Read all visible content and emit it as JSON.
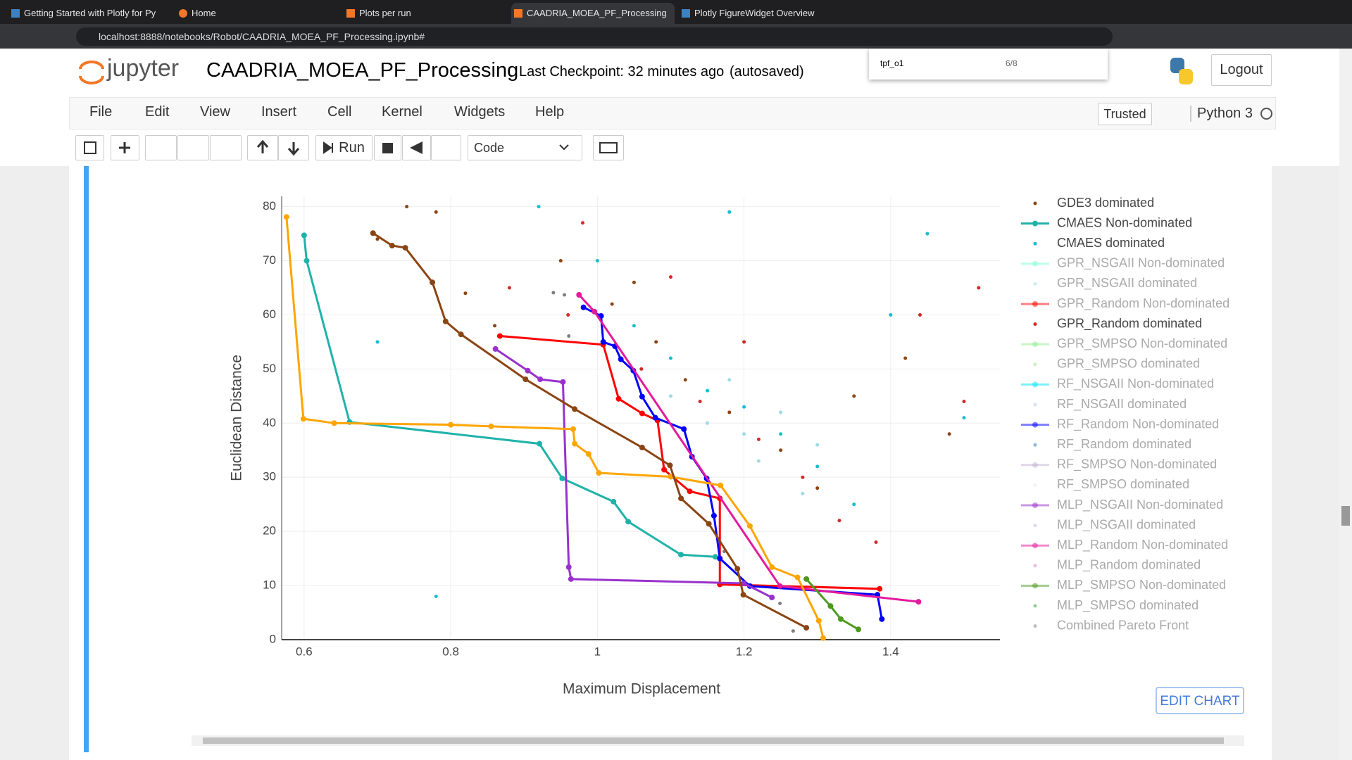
{
  "browser": {
    "tabs": [
      "Getting Started with Plotly for Py",
      "Home",
      "Plots per run",
      "CAADRIA_MOEA_PF_Processing",
      "Plotly FigureWidget Overview"
    ],
    "url": "localhost:8888/notebooks/Robot/CAADRIA_MOEA_PF_Processing.ipynb#",
    "find_query": "tpf_o1",
    "find_count": "6/8"
  },
  "notebook": {
    "logo_text": "jupyter",
    "title": "CAADRIA_MOEA_PF_Processing",
    "checkpoint": "Last Checkpoint: 32 minutes ago",
    "autosaved": "(autosaved)",
    "logout": "Logout",
    "menu": [
      "File",
      "Edit",
      "View",
      "Insert",
      "Cell",
      "Kernel",
      "Widgets",
      "Help"
    ],
    "trusted": "Trusted",
    "kernel": "Python 3",
    "run": "Run",
    "cell_type": "Code",
    "edit_chart": "EDIT CHART"
  },
  "chart_data": {
    "type": "scatter",
    "x_label": "Maximum Displacement",
    "y_label": "Euclidean Distance",
    "xlim": [
      0.5694,
      1.549
    ],
    "ylim": [
      0,
      81.9
    ],
    "xticks": [
      0.6,
      0.8,
      1,
      1.2,
      1.4
    ],
    "yticks": [
      0,
      10,
      20,
      30,
      40,
      50,
      60,
      70,
      80
    ],
    "grid": true,
    "legend": "right",
    "series": [
      {
        "name": "GDE3 dominated",
        "color": "#8b4513",
        "mode": "markers",
        "legend_faded": false,
        "x": [
          0.74,
          0.78,
          0.82,
          0.86,
          0.95,
          1.02,
          1.08,
          1.12,
          1.18,
          1.25,
          1.3,
          1.35,
          1.42,
          1.48,
          1.05,
          0.7
        ],
        "y": [
          80,
          79,
          64,
          58,
          70,
          62,
          55,
          48,
          42,
          35,
          28,
          45,
          52,
          38,
          66,
          74
        ]
      },
      {
        "name": "CMAES Non-dominated",
        "color": "#20b2aa",
        "mode": "lines+markers",
        "legend_faded": false,
        "x": [
          0.6,
          0.6035,
          0.662,
          0.921,
          0.952,
          1.022,
          1.042,
          1.114,
          1.161
        ],
        "y": [
          74.7,
          70,
          40.2,
          36.2,
          29.8,
          25.5,
          21.8,
          15.7,
          15.3
        ]
      },
      {
        "name": "CMAES dominated",
        "color": "#17becf",
        "mode": "markers",
        "legend_faded": false,
        "x": [
          0.92,
          1.0,
          1.05,
          1.1,
          1.15,
          1.2,
          1.25,
          1.3,
          1.35,
          1.4,
          1.45,
          0.7,
          0.78,
          1.5,
          1.18
        ],
        "y": [
          80,
          70,
          58,
          52,
          46,
          43,
          38,
          32,
          25,
          60,
          75,
          55,
          8,
          41,
          79
        ]
      },
      {
        "name": "GPR_NSGAII Non-dominated",
        "color": "#7fffd4",
        "mode": "lines+markers",
        "legend_faded": true,
        "x": [],
        "y": []
      },
      {
        "name": "GPR_NSGAII dominated",
        "color": "#9edae5",
        "mode": "markers",
        "legend_faded": true,
        "x": [
          1.1,
          1.15,
          1.2,
          1.25,
          1.3,
          1.18,
          1.22,
          1.28
        ],
        "y": [
          45,
          40,
          38,
          42,
          36,
          48,
          33,
          27
        ]
      },
      {
        "name": "GPR_Random Non-dominated",
        "color": "#ff0000",
        "mode": "lines+markers",
        "legend_faded": true,
        "x": [
          0.867,
          1.008,
          1.029,
          1.061,
          1.082,
          1.091,
          1.126,
          1.167,
          1.167,
          1.385
        ],
        "y": [
          56.1,
          54.5,
          44.5,
          41.8,
          40.5,
          31.4,
          27.4,
          26.1,
          10.2,
          9.4
        ]
      },
      {
        "name": "GPR_Random dominated",
        "color": "#d62728",
        "mode": "markers",
        "legend_faded": false,
        "x": [
          0.88,
          0.96,
          1.06,
          1.14,
          1.22,
          1.28,
          1.33,
          1.38,
          1.44,
          1.5,
          1.52,
          1.2,
          1.1,
          0.98
        ],
        "y": [
          65,
          60,
          50,
          44,
          37,
          30,
          22,
          18,
          60,
          44,
          65,
          55,
          67,
          77
        ]
      },
      {
        "name": "GPR_SMPSO Non-dominated",
        "color": "#90ee90",
        "mode": "lines+markers",
        "legend_faded": true,
        "x": [],
        "y": []
      },
      {
        "name": "GPR_SMPSO dominated",
        "color": "#98df8a",
        "mode": "markers",
        "legend_faded": true,
        "x": [],
        "y": []
      },
      {
        "name": "RF_NSGAII Non-dominated",
        "color": "#00e5ee",
        "mode": "lines+markers",
        "legend_faded": true,
        "x": [],
        "y": []
      },
      {
        "name": "RF_NSGAII dominated",
        "color": "#aec7e8",
        "mode": "markers",
        "legend_faded": true,
        "x": [],
        "y": []
      },
      {
        "name": "RF_Random Non-dominated",
        "color": "#0000ff",
        "mode": "lines+markers",
        "legend_faded": true,
        "x": [
          0.981,
          1.005,
          1.008,
          1.024,
          1.032,
          1.049,
          1.061,
          1.079,
          1.118,
          1.129,
          1.149,
          1.159,
          1.167,
          1.208,
          1.382,
          1.388
        ],
        "y": [
          61.4,
          59.8,
          55,
          54.2,
          51.8,
          49.7,
          44.9,
          41,
          38.9,
          33.8,
          29.8,
          22.9,
          15,
          9.9,
          8.3,
          3.8
        ]
      },
      {
        "name": "RF_Random dominated",
        "color": "#1f77b4",
        "mode": "markers",
        "legend_faded": true,
        "x": [],
        "y": []
      },
      {
        "name": "RF_SMPSO Non-dominated",
        "color": "#c5b0d5",
        "mode": "lines+markers",
        "legend_faded": true,
        "x": [],
        "y": []
      },
      {
        "name": "RF_SMPSO dominated",
        "color": "#e6e6fa",
        "mode": "markers",
        "legend_faded": true,
        "x": [],
        "y": []
      },
      {
        "name": "MLP_NSGAII Non-dominated",
        "color": "#9932cc",
        "mode": "lines+markers",
        "legend_faded": true,
        "x": [
          0.861,
          0.905,
          0.922,
          0.953,
          0.961,
          0.964,
          1.2,
          1.238
        ],
        "y": [
          53.7,
          49.7,
          48.1,
          47.6,
          13.4,
          11.2,
          10.4,
          7.8
        ]
      },
      {
        "name": "MLP_NSGAII dominated",
        "color": "#c5b0d5",
        "mode": "markers",
        "legend_faded": true,
        "x": [],
        "y": []
      },
      {
        "name": "MLP_Random Non-dominated",
        "color": "#e31a9c",
        "mode": "lines+markers",
        "legend_faded": true,
        "x": [
          0.975,
          0.996,
          1.249,
          1.438
        ],
        "y": [
          63.7,
          60.6,
          9.9,
          7.0
        ]
      },
      {
        "name": "MLP_Random dominated",
        "color": "#e377c2",
        "mode": "markers",
        "legend_faded": true,
        "x": [],
        "y": []
      },
      {
        "name": "MLP_SMPSO Non-dominated",
        "color": "#4d9a1e",
        "mode": "lines+markers",
        "legend_faded": true,
        "x": [
          1.285,
          1.318,
          1.332,
          1.356
        ],
        "y": [
          11.2,
          6.2,
          3.8,
          1.9
        ]
      },
      {
        "name": "MLP_SMPSO dominated",
        "color": "#2ca02c",
        "mode": "markers",
        "legend_faded": true,
        "x": [],
        "y": []
      },
      {
        "name": "Combined Pareto Front",
        "color": "#7f7f7f",
        "mode": "markers",
        "legend_faded": true,
        "x": [
          0.94,
          0.955,
          0.961,
          1.173,
          1.249,
          1.267
        ],
        "y": [
          64.1,
          63.7,
          56.1,
          16.3,
          6.7,
          1.6
        ]
      },
      {
        "color": "#ffa500",
        "mode": "lines+markers",
        "x": [
          0.576,
          0.599,
          0.641,
          0.8,
          0.855,
          0.967,
          0.969,
          0.988,
          1.002,
          1.1,
          1.168,
          1.208,
          1.238,
          1.273,
          1.302,
          1.308
        ],
        "y": [
          78.1,
          40.8,
          40,
          39.7,
          39.4,
          38.9,
          36.2,
          34.3,
          30.8,
          30.1,
          28.5,
          21,
          13.4,
          11.5,
          3.5,
          0.3
        ]
      },
      {
        "color": "#8b4513",
        "mode": "lines+markers",
        "x": [
          0.694,
          0.72,
          0.738,
          0.775,
          0.793,
          0.814,
          0.902,
          0.969,
          1.061,
          1.099,
          1.114,
          1.152,
          1.191,
          1.199,
          1.285
        ],
        "y": [
          75.1,
          72.8,
          72.4,
          66,
          58.8,
          56.4,
          48.1,
          42.6,
          35.5,
          32.2,
          26.1,
          21.4,
          13.1,
          8.3,
          2.2
        ]
      }
    ]
  }
}
